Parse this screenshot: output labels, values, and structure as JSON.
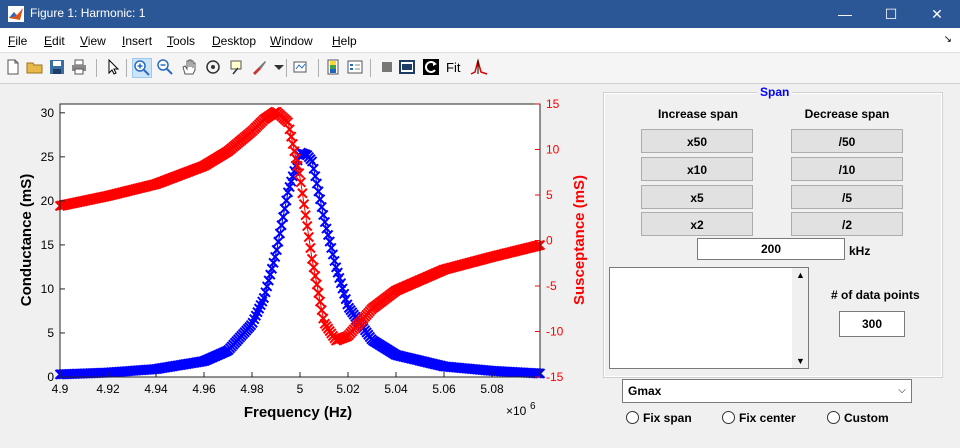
{
  "window": {
    "title": "Figure 1: Harmonic: 1",
    "controls": {
      "minimize": "—",
      "maximize": "☐",
      "close": "✕"
    }
  },
  "menu": {
    "items": [
      {
        "label": "File",
        "key": "F",
        "rest": "ile"
      },
      {
        "label": "Edit",
        "key": "E",
        "rest": "dit"
      },
      {
        "label": "View",
        "key": "V",
        "rest": "iew"
      },
      {
        "label": "Insert",
        "key": "I",
        "rest": "nsert"
      },
      {
        "label": "Tools",
        "key": "T",
        "rest": "ools"
      },
      {
        "label": "Desktop",
        "key": "D",
        "rest": "esktop"
      },
      {
        "label": "Window",
        "key": "W",
        "rest": "indow"
      },
      {
        "label": "Help",
        "key": "H",
        "rest": "elp"
      }
    ],
    "overflow_icon": "dock-arrow-icon"
  },
  "toolbar": {
    "fit_label": "Fit",
    "icons": [
      "new-file-icon",
      "open-folder-icon",
      "save-icon",
      "print-icon",
      "pointer-icon",
      "zoom-in-icon",
      "zoom-out-icon",
      "pan-hand-icon",
      "rotate-3d-icon",
      "data-cursor-icon",
      "brush-icon",
      "link-plot-icon",
      "colorbar-icon",
      "legend-icon",
      "hide-plot-tools-icon",
      "show-plot-tools-icon",
      "reset-icon",
      "fit-icon",
      "peak-icon"
    ]
  },
  "colors": {
    "conductance": "#0000ff",
    "susceptance": "#ff0000",
    "accent": "#2b5797"
  },
  "chart_data": {
    "type": "scatter",
    "xlabel": "Frequency (Hz)",
    "x_exponent_label": "×10",
    "x_exponent": "6",
    "ylabel_left": "Conductance (mS)",
    "ylabel_right": "Susceptance (mS)",
    "xlim": [
      4.9,
      5.1
    ],
    "ylim_left": [
      0,
      31
    ],
    "ylim_right": [
      -15,
      15
    ],
    "x_ticks": [
      "4.9",
      "4.92",
      "4.94",
      "4.96",
      "4.98",
      "5",
      "5.02",
      "5.04",
      "5.06",
      "5.08"
    ],
    "y_ticks_left": [
      "0",
      "5",
      "10",
      "15",
      "20",
      "25",
      "30"
    ],
    "y_ticks_right": [
      "-15",
      "-10",
      "-5",
      "0",
      "5",
      "10",
      "15"
    ],
    "grid": false,
    "marker": "x",
    "series": [
      {
        "color": "#0000ff",
        "axis": "left",
        "x": [
          4.9,
          4.92,
          4.94,
          4.96,
          4.97,
          4.98,
          4.985,
          4.99,
          4.995,
          5.0,
          5.003,
          5.005,
          5.007,
          5.01,
          5.015,
          5.02,
          5.03,
          5.04,
          5.06,
          5.08,
          5.1
        ],
        "y": [
          0.3,
          0.5,
          0.9,
          1.8,
          3.0,
          6.0,
          9.0,
          14.0,
          21.0,
          25.5,
          25.2,
          24.5,
          22.0,
          18.0,
          12.5,
          8.0,
          4.2,
          2.5,
          1.2,
          0.7,
          0.4
        ]
      },
      {
        "color": "#ff0000",
        "axis": "right",
        "x": [
          4.9,
          4.92,
          4.94,
          4.96,
          4.97,
          4.98,
          4.985,
          4.99,
          4.995,
          5.0,
          5.005,
          5.01,
          5.015,
          5.02,
          5.025,
          5.03,
          5.04,
          5.06,
          5.08,
          5.1
        ],
        "y": [
          3.8,
          4.9,
          6.2,
          8.2,
          9.8,
          12.0,
          13.3,
          14.2,
          13.0,
          7.0,
          -2.0,
          -9.0,
          -11.0,
          -10.5,
          -9.0,
          -7.5,
          -5.5,
          -3.2,
          -1.8,
          -0.5
        ]
      }
    ]
  },
  "span_panel": {
    "title": "Span",
    "increase_label": "Increase span",
    "decrease_label": "Decrease span",
    "increase_buttons": [
      "x50",
      "x10",
      "x5",
      "x2"
    ],
    "decrease_buttons": [
      "/50",
      "/10",
      "/5",
      "/2"
    ],
    "span_value": "200",
    "span_unit": "kHz",
    "data_points_label": "# of data points",
    "data_points_value": "300"
  },
  "mode_select": {
    "selected": "Gmax"
  },
  "radios": {
    "fix_span": "Fix span",
    "fix_center": "Fix center",
    "custom": "Custom"
  }
}
